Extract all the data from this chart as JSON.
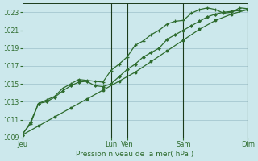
{
  "background_color": "#cce8ec",
  "grid_color": "#aaccd4",
  "line_color": "#2d6b2d",
  "title": "Pression niveau de la mer( hPa )",
  "ylim": [
    1009,
    1024
  ],
  "yticks": [
    1009,
    1011,
    1013,
    1015,
    1017,
    1019,
    1021,
    1023
  ],
  "day_labels": [
    "Jeu",
    "Lun",
    "Ven",
    "Sam",
    "Dim"
  ],
  "day_positions": [
    0,
    5.5,
    6.5,
    10,
    14
  ],
  "xlim": [
    0,
    14
  ],
  "vline_positions": [
    5.5,
    6.5,
    10,
    14
  ],
  "vline_color": "#1a3a1a",
  "series_straight_x": [
    0,
    1,
    2,
    3,
    4,
    5,
    6,
    7,
    8,
    9,
    10,
    11,
    12,
    13,
    14
  ],
  "series_straight_y": [
    1009.3,
    1010.3,
    1011.3,
    1012.3,
    1013.3,
    1014.3,
    1015.3,
    1016.3,
    1017.5,
    1018.7,
    1019.9,
    1021.1,
    1022.1,
    1022.8,
    1023.3
  ],
  "series_upper_x": [
    0,
    0.5,
    1,
    1.5,
    2,
    2.5,
    3,
    3.5,
    4,
    4.5,
    5,
    5.5,
    6,
    6.5,
    7,
    7.5,
    8,
    8.5,
    9,
    9.5,
    10,
    10.5,
    11,
    11.5,
    12,
    12.5,
    13,
    13.5,
    14
  ],
  "series_upper_y": [
    1009.4,
    1010.5,
    1012.8,
    1013.2,
    1013.6,
    1014.5,
    1015.0,
    1015.5,
    1015.4,
    1015.3,
    1015.2,
    1016.5,
    1017.2,
    1018.0,
    1019.3,
    1019.8,
    1020.5,
    1021.0,
    1021.7,
    1022.0,
    1022.1,
    1022.9,
    1023.3,
    1023.5,
    1023.3,
    1022.9,
    1023.0,
    1023.5,
    1023.4
  ],
  "series_lower_x": [
    0,
    0.5,
    1,
    1.5,
    2,
    2.5,
    3,
    3.5,
    4,
    4.5,
    5,
    5.5,
    6,
    6.5,
    7,
    7.5,
    8,
    8.5,
    9,
    9.5,
    10,
    10.5,
    11,
    11.5,
    12,
    12.5,
    13,
    13.5,
    14
  ],
  "series_lower_y": [
    1009.3,
    1010.7,
    1012.8,
    1013.0,
    1013.5,
    1014.2,
    1014.8,
    1015.2,
    1015.3,
    1014.8,
    1014.7,
    1015.0,
    1015.8,
    1016.6,
    1017.2,
    1018.0,
    1018.5,
    1019.0,
    1020.0,
    1020.5,
    1021.0,
    1021.5,
    1022.0,
    1022.5,
    1022.8,
    1023.0,
    1023.1,
    1023.2,
    1023.3
  ]
}
